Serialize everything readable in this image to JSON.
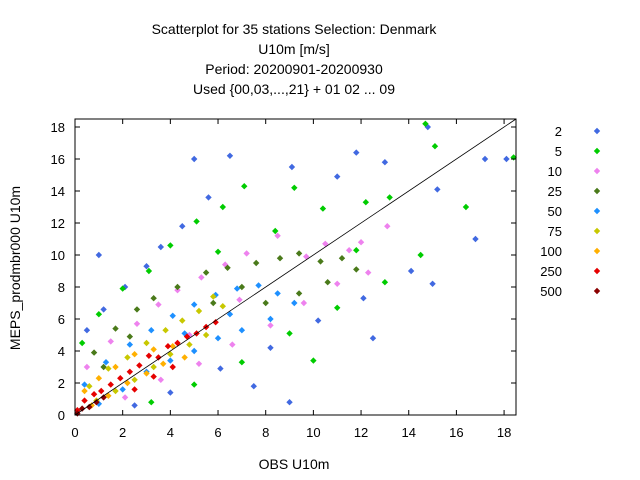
{
  "chart_data": {
    "type": "scatter",
    "title_lines": [
      "Scatterplot for   35 stations Selection: Denmark",
      "U10m [m/s]",
      "Period: 20200901-20200930",
      "Used {00,03,...,21} + 01 02 ... 09"
    ],
    "xlabel": "OBS U10m",
    "ylabel": "MEPS_prodmbr000 U10m",
    "xlim": [
      0,
      18.5
    ],
    "ylim": [
      0,
      18.5
    ],
    "x_ticks": [
      0,
      2,
      4,
      6,
      8,
      10,
      12,
      14,
      16,
      18
    ],
    "y_ticks": [
      0,
      2,
      4,
      6,
      8,
      10,
      12,
      14,
      16,
      18
    ],
    "diagonal_line": true,
    "grid": false,
    "legend_position": "right",
    "series": [
      {
        "name": "2",
        "color": "#4169e1",
        "points": [
          [
            0.5,
            5.3
          ],
          [
            1.2,
            6.6
          ],
          [
            2.1,
            8.0
          ],
          [
            3.0,
            9.3
          ],
          [
            3.6,
            10.5
          ],
          [
            4.5,
            11.8
          ],
          [
            5.6,
            13.6
          ],
          [
            6.5,
            16.2
          ],
          [
            9.1,
            15.5
          ],
          [
            11.0,
            14.9
          ],
          [
            13.0,
            15.8
          ],
          [
            14.8,
            18.0
          ],
          [
            15.2,
            14.1
          ],
          [
            17.2,
            16.0
          ],
          [
            16.8,
            11.0
          ],
          [
            14.1,
            9.0
          ],
          [
            12.1,
            7.3
          ],
          [
            10.2,
            5.9
          ],
          [
            8.2,
            4.2
          ],
          [
            6.1,
            2.9
          ],
          [
            4.0,
            1.4
          ],
          [
            2.5,
            0.6
          ],
          [
            9.0,
            0.8
          ],
          [
            15.0,
            8.2
          ],
          [
            12.5,
            4.8
          ],
          [
            7.5,
            1.8
          ],
          [
            5.0,
            16.0
          ],
          [
            11.8,
            16.4
          ],
          [
            18.1,
            16.0
          ],
          [
            1.0,
            10.0
          ]
        ]
      },
      {
        "name": "5",
        "color": "#00cc00",
        "points": [
          [
            0.3,
            4.5
          ],
          [
            1.0,
            6.3
          ],
          [
            2.0,
            7.9
          ],
          [
            3.1,
            9.0
          ],
          [
            4.0,
            10.6
          ],
          [
            5.1,
            12.1
          ],
          [
            6.2,
            13.0
          ],
          [
            7.1,
            14.3
          ],
          [
            9.2,
            14.2
          ],
          [
            10.4,
            12.9
          ],
          [
            12.2,
            13.3
          ],
          [
            13.2,
            13.6
          ],
          [
            14.7,
            18.2
          ],
          [
            15.1,
            16.8
          ],
          [
            18.4,
            16.1
          ],
          [
            14.5,
            10.0
          ],
          [
            13.0,
            8.3
          ],
          [
            11.0,
            6.7
          ],
          [
            9.0,
            5.1
          ],
          [
            7.0,
            3.3
          ],
          [
            5.0,
            1.9
          ],
          [
            3.2,
            0.8
          ],
          [
            11.8,
            10.3
          ],
          [
            8.4,
            11.5
          ],
          [
            6.0,
            10.2
          ],
          [
            10.0,
            3.4
          ],
          [
            16.4,
            13.0
          ]
        ]
      },
      {
        "name": "10",
        "color": "#ee82ee",
        "points": [
          [
            0.5,
            3.0
          ],
          [
            1.5,
            4.6
          ],
          [
            2.6,
            5.7
          ],
          [
            3.5,
            6.9
          ],
          [
            4.3,
            7.8
          ],
          [
            5.3,
            8.6
          ],
          [
            6.3,
            9.4
          ],
          [
            7.2,
            10.1
          ],
          [
            8.5,
            11.2
          ],
          [
            9.7,
            9.9
          ],
          [
            10.5,
            10.7
          ],
          [
            11.5,
            10.3
          ],
          [
            12.0,
            10.8
          ],
          [
            13.1,
            11.8
          ],
          [
            12.3,
            8.9
          ],
          [
            11.0,
            8.2
          ],
          [
            9.6,
            7.0
          ],
          [
            8.2,
            5.6
          ],
          [
            6.6,
            4.4
          ],
          [
            5.2,
            3.2
          ],
          [
            3.6,
            2.2
          ],
          [
            2.1,
            1.1
          ],
          [
            4.8,
            5.0
          ],
          [
            6.9,
            7.2
          ]
        ]
      },
      {
        "name": "25",
        "color": "#4a7a1a",
        "points": [
          [
            0.8,
            3.9
          ],
          [
            1.7,
            5.4
          ],
          [
            2.6,
            6.6
          ],
          [
            3.3,
            7.3
          ],
          [
            4.3,
            8.0
          ],
          [
            5.5,
            8.9
          ],
          [
            6.4,
            9.2
          ],
          [
            7.6,
            9.5
          ],
          [
            8.6,
            9.8
          ],
          [
            9.4,
            10.1
          ],
          [
            10.3,
            9.6
          ],
          [
            11.2,
            9.8
          ],
          [
            11.8,
            9.1
          ],
          [
            10.6,
            8.3
          ],
          [
            9.4,
            7.6
          ],
          [
            8.0,
            7.0
          ],
          [
            2.3,
            4.9
          ],
          [
            1.2,
            3.0
          ],
          [
            5.8,
            7.0
          ],
          [
            7.0,
            8.0
          ]
        ]
      },
      {
        "name": "50",
        "color": "#1e90ff",
        "points": [
          [
            0.4,
            1.9
          ],
          [
            1.3,
            3.3
          ],
          [
            2.3,
            4.4
          ],
          [
            3.2,
            5.3
          ],
          [
            4.1,
            6.2
          ],
          [
            5.0,
            6.9
          ],
          [
            5.9,
            7.5
          ],
          [
            6.8,
            7.9
          ],
          [
            7.7,
            8.1
          ],
          [
            8.5,
            7.6
          ],
          [
            9.2,
            7.0
          ],
          [
            8.2,
            6.0
          ],
          [
            7.0,
            5.3
          ],
          [
            6.0,
            4.8
          ],
          [
            5.0,
            4.0
          ],
          [
            4.0,
            3.4
          ],
          [
            3.0,
            2.7
          ],
          [
            2.0,
            1.6
          ],
          [
            1.0,
            0.7
          ],
          [
            6.5,
            6.3
          ],
          [
            4.6,
            5.1
          ]
        ]
      },
      {
        "name": "75",
        "color": "#c8c800",
        "points": [
          [
            0.6,
            1.8
          ],
          [
            1.4,
            2.9
          ],
          [
            2.2,
            3.6
          ],
          [
            3.0,
            4.5
          ],
          [
            3.8,
            5.3
          ],
          [
            4.5,
            5.9
          ],
          [
            5.2,
            6.5
          ],
          [
            5.8,
            7.4
          ],
          [
            6.2,
            6.8
          ],
          [
            5.5,
            5.0
          ],
          [
            4.8,
            4.4
          ],
          [
            4.0,
            3.8
          ],
          [
            3.3,
            3.0
          ],
          [
            2.5,
            2.2
          ],
          [
            1.7,
            1.5
          ],
          [
            0.9,
            0.9
          ]
        ]
      },
      {
        "name": "100",
        "color": "#ffb000",
        "points": [
          [
            0.4,
            1.5
          ],
          [
            1.0,
            2.3
          ],
          [
            1.7,
            3.0
          ],
          [
            2.5,
            3.8
          ],
          [
            3.3,
            4.1
          ],
          [
            4.1,
            4.3
          ],
          [
            3.7,
            3.2
          ],
          [
            3.0,
            2.6
          ],
          [
            2.2,
            2.0
          ],
          [
            1.4,
            1.2
          ],
          [
            0.7,
            0.6
          ],
          [
            4.6,
            3.6
          ]
        ]
      },
      {
        "name": "250",
        "color": "#e60000",
        "points": [
          [
            0.1,
            0.3
          ],
          [
            0.4,
            0.9
          ],
          [
            0.8,
            1.3
          ],
          [
            1.1,
            1.5
          ],
          [
            1.5,
            1.9
          ],
          [
            1.9,
            2.3
          ],
          [
            2.3,
            2.7
          ],
          [
            2.7,
            3.1
          ],
          [
            3.1,
            3.7
          ],
          [
            3.5,
            3.6
          ],
          [
            3.9,
            4.3
          ],
          [
            4.3,
            4.5
          ],
          [
            4.7,
            4.9
          ],
          [
            5.1,
            5.1
          ],
          [
            5.5,
            5.5
          ],
          [
            5.9,
            5.8
          ],
          [
            2.5,
            1.6
          ],
          [
            3.3,
            2.4
          ],
          [
            4.1,
            3.0
          ]
        ]
      },
      {
        "name": "500",
        "color": "#8b0000",
        "points": [
          [
            0.1,
            0.1
          ],
          [
            0.3,
            0.4
          ],
          [
            0.6,
            0.5
          ],
          [
            0.9,
            0.8
          ],
          [
            1.2,
            1.1
          ]
        ]
      }
    ]
  }
}
